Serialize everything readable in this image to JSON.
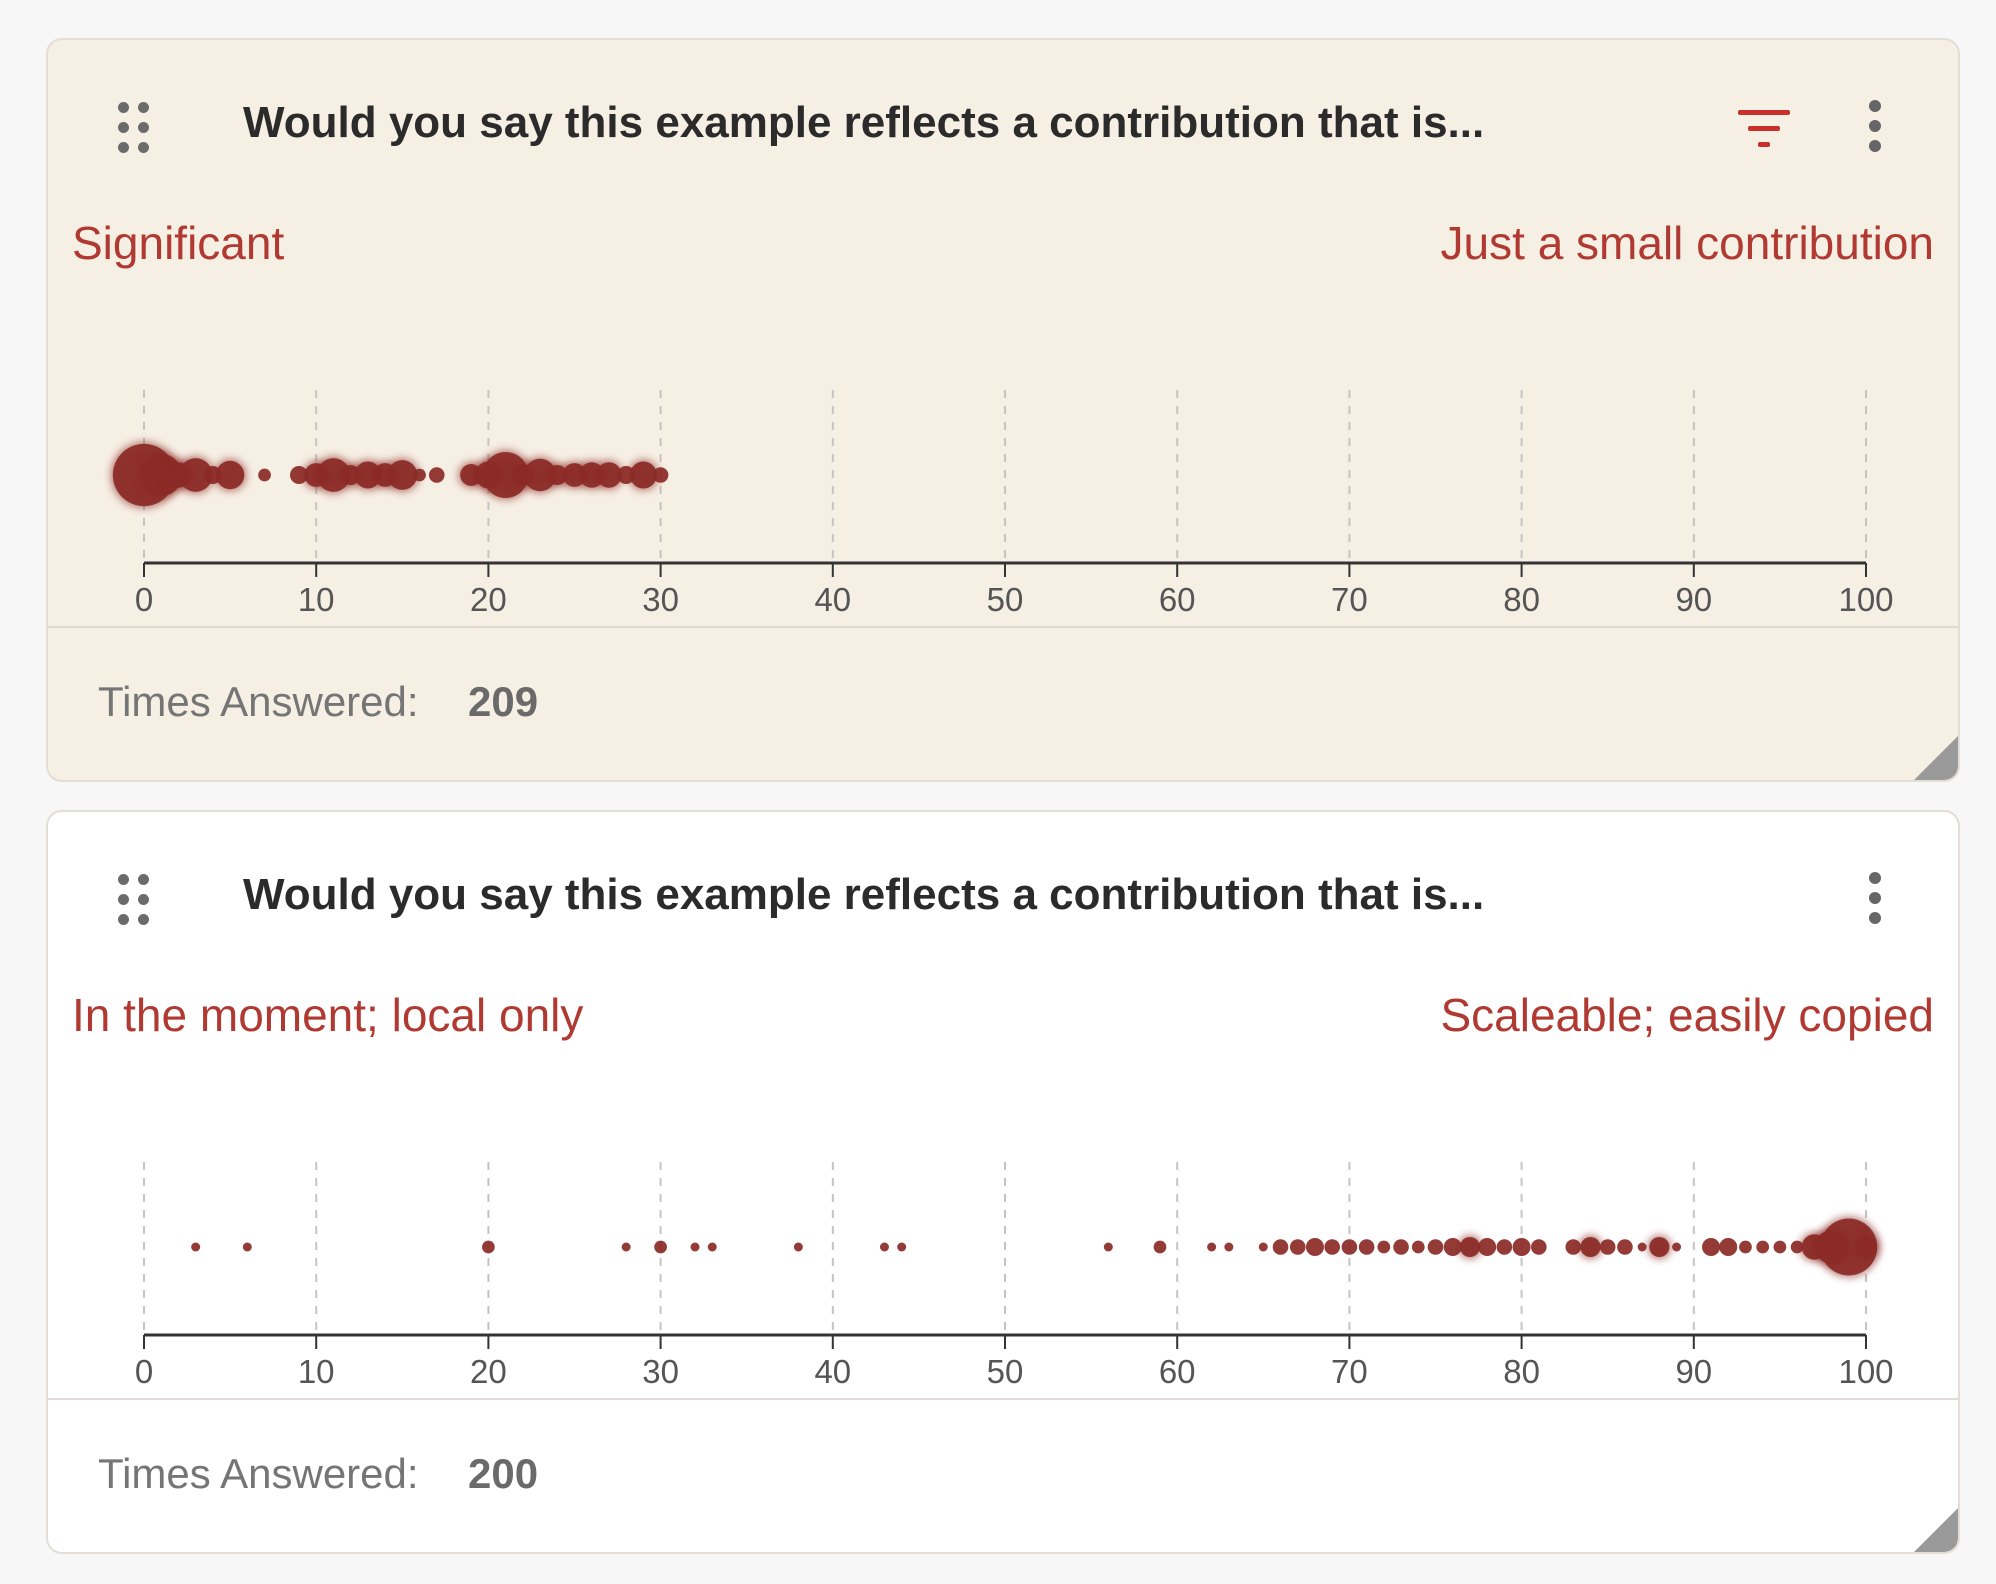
{
  "cards": [
    {
      "title": "Would you say this example reflects a contribution that is...",
      "left_label": "Significant",
      "right_label": "Just a small contribution",
      "footer_label": "Times Answered:",
      "footer_value": "209",
      "has_filter": true,
      "highlighted": true
    },
    {
      "title": "Would you say this example reflects a contribution that is...",
      "left_label": "In the moment; local only",
      "right_label": "Scaleable; easily copied",
      "footer_label": "Times Answered:",
      "footer_value": "200",
      "has_filter": false,
      "highlighted": false
    }
  ],
  "colors": {
    "accent": "#c9302c",
    "label_red": "#b03a32",
    "dot": "#8b2a26",
    "highlight_bg": "#f6efe4"
  },
  "icons": [
    "drag-handle-icon",
    "filter-icon",
    "more-vert-icon",
    "resize-grip-icon"
  ],
  "chart_data": [
    {
      "type": "scatter",
      "x_axis_ticks": [
        0,
        10,
        20,
        30,
        40,
        50,
        60,
        70,
        80,
        90,
        100
      ],
      "xlim": [
        0,
        100
      ],
      "grid": true,
      "x": [
        0,
        1,
        2,
        3,
        4,
        5,
        7,
        9,
        10,
        11,
        12,
        13,
        14,
        15,
        16,
        17,
        19,
        20,
        21,
        22,
        23,
        24,
        25,
        26,
        27,
        28,
        29,
        30
      ],
      "y": [
        48,
        22,
        8,
        14,
        4,
        10,
        2,
        4,
        7,
        14,
        5,
        9,
        7,
        11,
        2,
        3,
        6,
        9,
        26,
        6,
        13,
        5,
        7,
        8,
        8,
        4,
        9,
        3
      ]
    },
    {
      "type": "scatter",
      "x_axis_ticks": [
        0,
        10,
        20,
        30,
        40,
        50,
        60,
        70,
        80,
        90,
        100
      ],
      "xlim": [
        0,
        100
      ],
      "grid": true,
      "x": [
        3,
        6,
        20,
        28,
        30,
        32,
        33,
        38,
        43,
        44,
        56,
        59,
        62,
        63,
        65,
        66,
        67,
        68,
        69,
        70,
        71,
        72,
        73,
        74,
        75,
        76,
        77,
        78,
        79,
        80,
        81,
        83,
        84,
        85,
        86,
        87,
        88,
        89,
        91,
        92,
        93,
        94,
        95,
        96,
        97,
        98,
        99,
        100
      ],
      "y": [
        1,
        1,
        2,
        1,
        2,
        1,
        1,
        1,
        1,
        1,
        1,
        2,
        1,
        1,
        1,
        3,
        3,
        4,
        3,
        3,
        3,
        2,
        3,
        2,
        3,
        4,
        5,
        4,
        3,
        4,
        3,
        3,
        5,
        3,
        3,
        1,
        5,
        1,
        4,
        4,
        2,
        2,
        2,
        2,
        8,
        14,
        40,
        6
      ]
    }
  ]
}
